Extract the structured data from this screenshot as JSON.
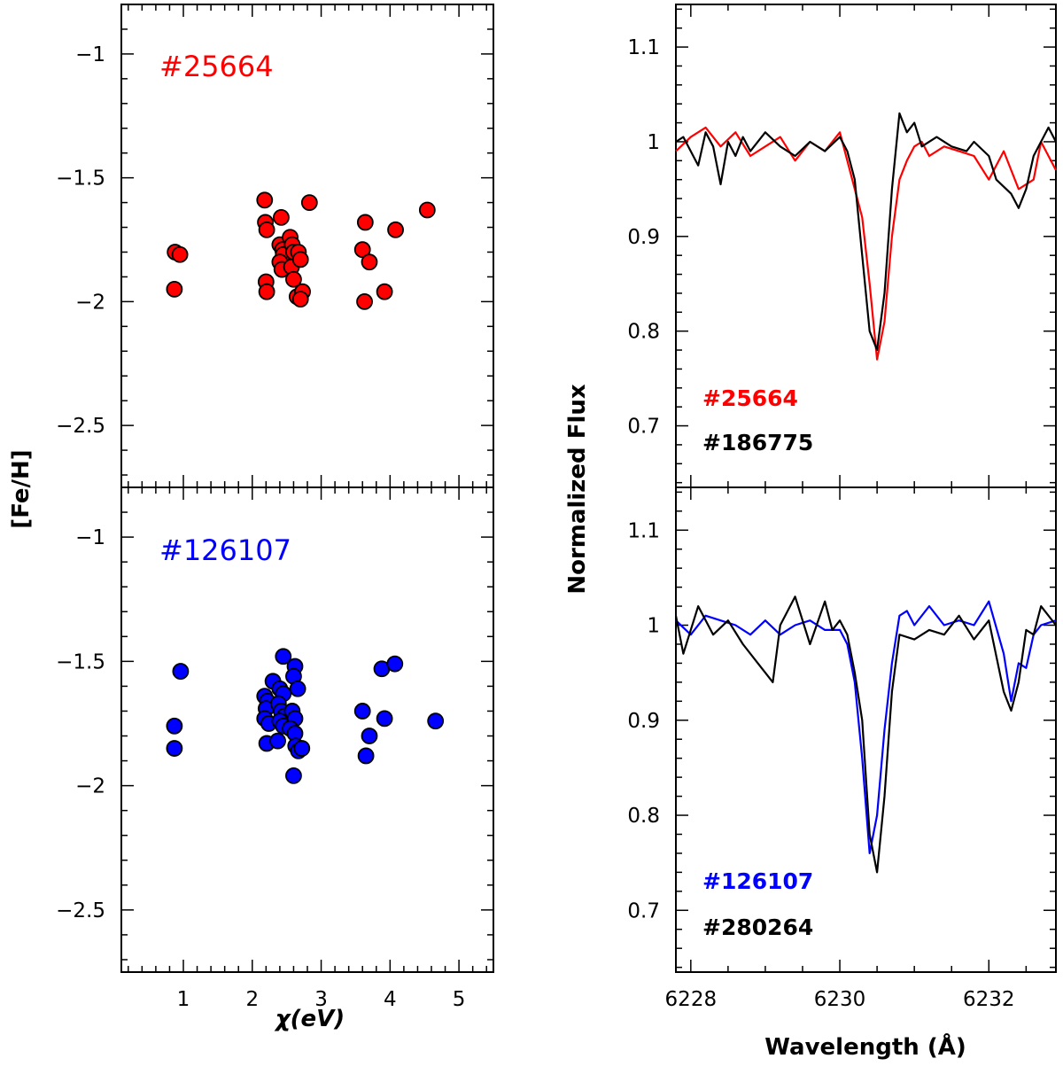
{
  "chart_data": [
    {
      "type": "scatter",
      "panel": "top-left",
      "star_label": "#25664",
      "color": "#ff0000",
      "xlim": [
        0.1,
        5.5
      ],
      "ylim": [
        -2.75,
        -0.8
      ],
      "x_ticks": [
        "1",
        "2",
        "3",
        "4",
        "5"
      ],
      "y_ticks": [
        "−1",
        "−1.5",
        "−2",
        "−2.5"
      ],
      "points": [
        [
          0.88,
          -1.8
        ],
        [
          0.95,
          -1.81
        ],
        [
          0.87,
          -1.95
        ],
        [
          2.18,
          -1.59
        ],
        [
          2.19,
          -1.68
        ],
        [
          2.21,
          -1.71
        ],
        [
          2.2,
          -1.92
        ],
        [
          2.21,
          -1.96
        ],
        [
          2.42,
          -1.66
        ],
        [
          2.4,
          -1.77
        ],
        [
          2.44,
          -1.79
        ],
        [
          2.45,
          -1.81
        ],
        [
          2.4,
          -1.84
        ],
        [
          2.43,
          -1.87
        ],
        [
          2.55,
          -1.74
        ],
        [
          2.58,
          -1.77
        ],
        [
          2.6,
          -1.8
        ],
        [
          2.57,
          -1.86
        ],
        [
          2.67,
          -1.8
        ],
        [
          2.7,
          -1.83
        ],
        [
          2.6,
          -1.91
        ],
        [
          2.65,
          -1.98
        ],
        [
          2.73,
          -1.96
        ],
        [
          2.7,
          -1.99
        ],
        [
          2.83,
          -1.6
        ],
        [
          3.64,
          -1.68
        ],
        [
          3.6,
          -1.79
        ],
        [
          3.7,
          -1.84
        ],
        [
          3.63,
          -2.0
        ],
        [
          3.92,
          -1.96
        ],
        [
          4.08,
          -1.71
        ],
        [
          4.54,
          -1.63
        ]
      ]
    },
    {
      "type": "scatter",
      "panel": "bottom-left",
      "star_label": "#126107",
      "color": "#0000ff",
      "xlim": [
        0.1,
        5.5
      ],
      "ylim": [
        -2.75,
        -0.8
      ],
      "x_ticks": [
        "1",
        "2",
        "3",
        "4",
        "5"
      ],
      "y_ticks": [
        "−1",
        "−1.5",
        "−2",
        "−2.5"
      ],
      "xlabel": "χ(eV)",
      "ylabel": "[Fe/H]",
      "points": [
        [
          0.96,
          -1.54
        ],
        [
          0.87,
          -1.76
        ],
        [
          0.87,
          -1.85
        ],
        [
          2.3,
          -1.58
        ],
        [
          2.18,
          -1.64
        ],
        [
          2.22,
          -1.66
        ],
        [
          2.2,
          -1.69
        ],
        [
          2.18,
          -1.73
        ],
        [
          2.24,
          -1.75
        ],
        [
          2.21,
          -1.83
        ],
        [
          2.45,
          -1.48
        ],
        [
          2.4,
          -1.61
        ],
        [
          2.45,
          -1.63
        ],
        [
          2.38,
          -1.67
        ],
        [
          2.42,
          -1.7
        ],
        [
          2.47,
          -1.72
        ],
        [
          2.4,
          -1.74
        ],
        [
          2.45,
          -1.76
        ],
        [
          2.37,
          -1.82
        ],
        [
          2.62,
          -1.52
        ],
        [
          2.6,
          -1.56
        ],
        [
          2.66,
          -1.61
        ],
        [
          2.58,
          -1.7
        ],
        [
          2.62,
          -1.73
        ],
        [
          2.55,
          -1.77
        ],
        [
          2.62,
          -1.79
        ],
        [
          2.63,
          -1.84
        ],
        [
          2.67,
          -1.86
        ],
        [
          2.72,
          -1.85
        ],
        [
          2.6,
          -1.96
        ],
        [
          3.6,
          -1.7
        ],
        [
          3.7,
          -1.8
        ],
        [
          3.65,
          -1.88
        ],
        [
          3.88,
          -1.53
        ],
        [
          3.92,
          -1.73
        ],
        [
          4.07,
          -1.51
        ],
        [
          4.66,
          -1.74
        ]
      ]
    },
    {
      "type": "line",
      "panel": "top-right",
      "xlim": [
        6227.8,
        6232.9
      ],
      "ylim": [
        0.635,
        1.145
      ],
      "x_ticks": [
        "6228",
        "6230",
        "6232"
      ],
      "y_ticks": [
        "0.7",
        "0.8",
        "0.9",
        "1",
        "1.1"
      ],
      "legend": [
        {
          "name": "#25664",
          "color": "#ff0000"
        },
        {
          "name": "#186775",
          "color": "#000000"
        }
      ],
      "series": [
        {
          "name": "#25664",
          "color": "#ff0000",
          "x": [
            6227.8,
            6228.0,
            6228.2,
            6228.4,
            6228.6,
            6228.8,
            6229.0,
            6229.2,
            6229.4,
            6229.6,
            6229.8,
            6230.0,
            6230.1,
            6230.3,
            6230.4,
            6230.5,
            6230.6,
            6230.7,
            6230.8,
            6230.9,
            6231.0,
            6231.1,
            6231.2,
            6231.4,
            6231.6,
            6231.8,
            6232.0,
            6232.2,
            6232.4,
            6232.6,
            6232.7,
            6232.9
          ],
          "y": [
            0.99,
            1.005,
            1.015,
            0.995,
            1.01,
            0.985,
            0.995,
            1.005,
            0.98,
            1.0,
            0.99,
            1.01,
            0.98,
            0.92,
            0.85,
            0.77,
            0.81,
            0.9,
            0.96,
            0.98,
            0.995,
            1.0,
            0.985,
            0.995,
            0.99,
            0.985,
            0.96,
            0.99,
            0.95,
            0.96,
            1.0,
            0.97
          ]
        },
        {
          "name": "#186775",
          "color": "#000000",
          "x": [
            6227.8,
            6227.9,
            6228.1,
            6228.2,
            6228.3,
            6228.4,
            6228.5,
            6228.6,
            6228.7,
            6228.8,
            6229.0,
            6229.2,
            6229.4,
            6229.6,
            6229.8,
            6230.0,
            6230.1,
            6230.2,
            6230.3,
            6230.4,
            6230.5,
            6230.6,
            6230.7,
            6230.8,
            6230.9,
            6231.0,
            6231.1,
            6231.3,
            6231.5,
            6231.7,
            6231.8,
            6232.0,
            6232.1,
            6232.3,
            6232.4,
            6232.5,
            6232.6,
            6232.8,
            6232.9
          ],
          "y": [
            1.0,
            1.005,
            0.975,
            1.01,
            0.995,
            0.955,
            1.0,
            0.985,
            1.005,
            0.99,
            1.01,
            0.995,
            0.985,
            1.0,
            0.99,
            1.005,
            0.99,
            0.96,
            0.88,
            0.8,
            0.78,
            0.84,
            0.95,
            1.03,
            1.01,
            1.02,
            0.995,
            1.005,
            0.995,
            0.99,
            1.0,
            0.985,
            0.96,
            0.945,
            0.93,
            0.95,
            0.985,
            1.015,
            1.0
          ]
        }
      ]
    },
    {
      "type": "line",
      "panel": "bottom-right",
      "xlim": [
        6227.8,
        6232.9
      ],
      "ylim": [
        0.635,
        1.145
      ],
      "x_ticks": [
        "6228",
        "6230",
        "6232"
      ],
      "y_ticks": [
        "0.7",
        "0.8",
        "0.9",
        "1",
        "1.1"
      ],
      "xlabel": "Wavelength (Å)",
      "ylabel": "Normalized Flux",
      "legend": [
        {
          "name": "#126107",
          "color": "#0000ff"
        },
        {
          "name": "#280264",
          "color": "#000000"
        }
      ],
      "series": [
        {
          "name": "#126107",
          "color": "#0000ff",
          "x": [
            6227.8,
            6228.0,
            6228.2,
            6228.4,
            6228.6,
            6228.8,
            6229.0,
            6229.2,
            6229.4,
            6229.6,
            6229.8,
            6230.0,
            6230.1,
            6230.2,
            6230.3,
            6230.4,
            6230.5,
            6230.6,
            6230.7,
            6230.8,
            6230.9,
            6231.0,
            6231.2,
            6231.4,
            6231.6,
            6231.8,
            6232.0,
            6232.2,
            6232.3,
            6232.4,
            6232.5,
            6232.6,
            6232.7,
            6232.9
          ],
          "y": [
            1.005,
            0.99,
            1.01,
            1.005,
            1.0,
            0.99,
            1.005,
            0.99,
            1.0,
            1.005,
            0.995,
            0.995,
            0.98,
            0.94,
            0.86,
            0.76,
            0.8,
            0.89,
            0.96,
            1.01,
            1.015,
            1.0,
            1.02,
            1.0,
            1.005,
            1.0,
            1.025,
            0.97,
            0.92,
            0.96,
            0.955,
            0.99,
            1.0,
            1.005
          ]
        },
        {
          "name": "#280264",
          "color": "#000000",
          "x": [
            6227.8,
            6227.9,
            6228.1,
            6228.3,
            6228.5,
            6228.7,
            6228.9,
            6229.1,
            6229.2,
            6229.4,
            6229.6,
            6229.8,
            6229.9,
            6230.0,
            6230.1,
            6230.2,
            6230.3,
            6230.4,
            6230.5,
            6230.6,
            6230.7,
            6230.8,
            6231.0,
            6231.2,
            6231.4,
            6231.6,
            6231.8,
            6232.0,
            6232.2,
            6232.3,
            6232.4,
            6232.5,
            6232.6,
            6232.7,
            6232.9
          ],
          "y": [
            1.01,
            0.97,
            1.02,
            0.99,
            1.005,
            0.98,
            0.96,
            0.94,
            1.0,
            1.03,
            0.98,
            1.025,
            0.995,
            1.005,
            0.99,
            0.95,
            0.9,
            0.78,
            0.74,
            0.82,
            0.93,
            0.99,
            0.985,
            0.995,
            0.99,
            1.01,
            0.985,
            1.005,
            0.93,
            0.91,
            0.94,
            0.995,
            0.99,
            1.02,
            1.0
          ]
        }
      ]
    }
  ]
}
